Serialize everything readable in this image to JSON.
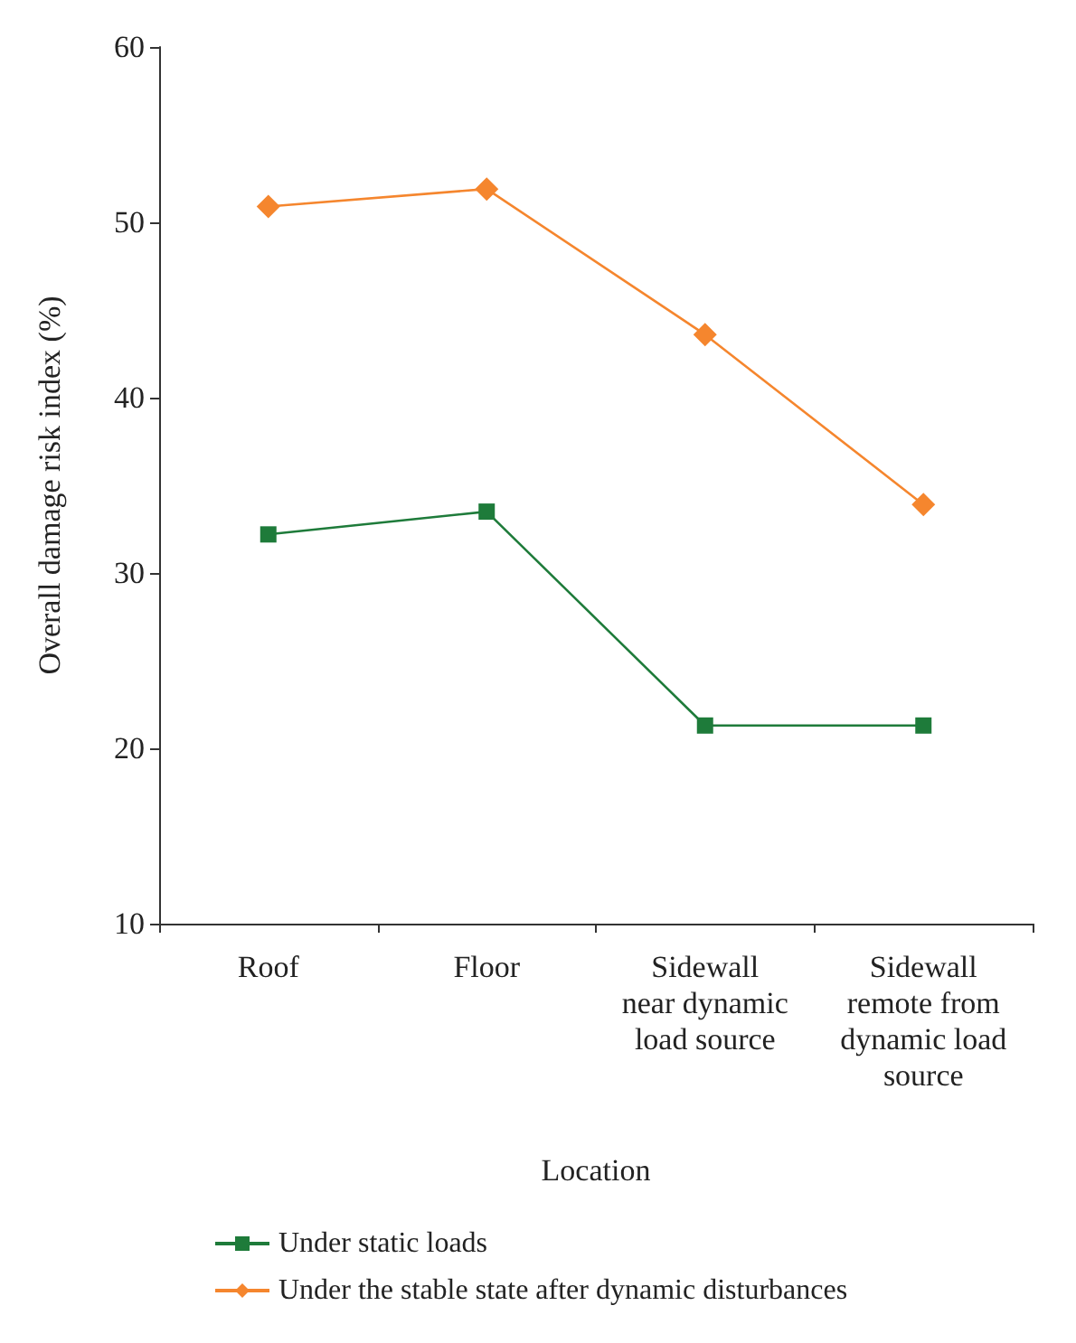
{
  "chart_data": {
    "type": "line",
    "xlabel": "Location",
    "ylabel": "Overall damage risk index (%)",
    "categories": [
      "Roof",
      "Floor",
      "Sidewall\nnear dynamic\nload source",
      "Sidewall\nremote from\ndynamic load\nsource"
    ],
    "series": [
      {
        "name": "Under static loads",
        "color": "#1e7b3a",
        "marker": "square",
        "values": [
          32.2,
          33.5,
          21.3,
          21.3
        ]
      },
      {
        "name": "Under the stable state after dynamic disturbances",
        "color": "#f5862e",
        "marker": "diamond",
        "values": [
          50.9,
          51.9,
          43.6,
          33.9
        ]
      }
    ],
    "ylim": [
      10,
      60
    ],
    "yticks": [
      10,
      20,
      30,
      40,
      50,
      60
    ],
    "grid": false,
    "legend": "bottom left"
  }
}
